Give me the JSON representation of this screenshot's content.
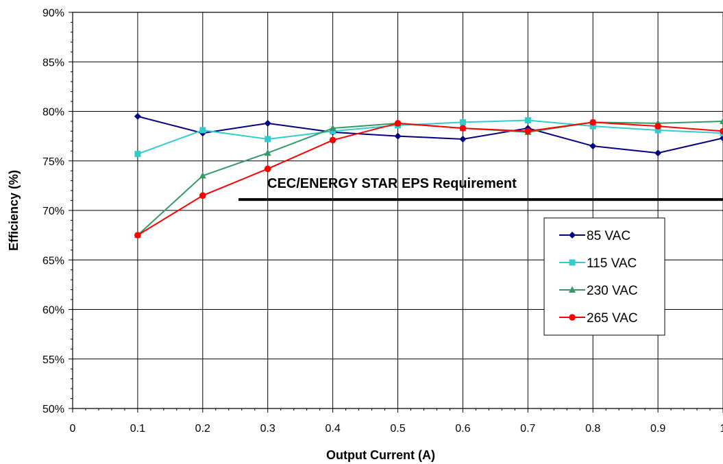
{
  "chart_data": {
    "type": "line",
    "title": "",
    "xlabel": "Output Current (A)",
    "ylabel": "Efficiency (%)",
    "xlim": [
      0,
      1
    ],
    "ylim": [
      50,
      90
    ],
    "x_ticks": [
      "0",
      "0.1",
      "0.2",
      "0.3",
      "0.4",
      "0.5",
      "0.6",
      "0.7",
      "0.8",
      "0.9",
      "1"
    ],
    "y_ticks": [
      "50%",
      "55%",
      "60%",
      "65%",
      "70%",
      "75%",
      "80%",
      "85%",
      "90%"
    ],
    "grid": true,
    "legend_position": "right",
    "x": [
      0.1,
      0.2,
      0.3,
      0.4,
      0.5,
      0.6,
      0.7,
      0.8,
      0.9,
      1.0
    ],
    "series": [
      {
        "name": "85 VAC",
        "color": "#000080",
        "marker": "diamond",
        "values": [
          79.5,
          77.8,
          78.8,
          77.9,
          77.5,
          77.2,
          78.3,
          76.5,
          75.8,
          77.3
        ]
      },
      {
        "name": "115 VAC",
        "color": "#33CCCC",
        "marker": "square",
        "values": [
          75.7,
          78.1,
          77.2,
          78.0,
          78.6,
          78.9,
          79.1,
          78.5,
          78.1,
          77.8
        ]
      },
      {
        "name": "230 VAC",
        "color": "#339966",
        "marker": "triangle",
        "values": [
          67.5,
          73.5,
          75.8,
          78.3,
          78.8,
          78.3,
          77.9,
          78.9,
          78.8,
          79.0
        ]
      },
      {
        "name": "265 VAC",
        "color": "#FF0000",
        "marker": "circle",
        "values": [
          67.5,
          71.5,
          74.2,
          77.1,
          78.8,
          78.3,
          78.0,
          78.9,
          78.5,
          78.0
        ]
      }
    ],
    "annotation": {
      "text": "CEC/ENERGY STAR EPS Requirement",
      "line_y": 71.1,
      "x_start": 0.255,
      "x_end": 1.0
    }
  }
}
